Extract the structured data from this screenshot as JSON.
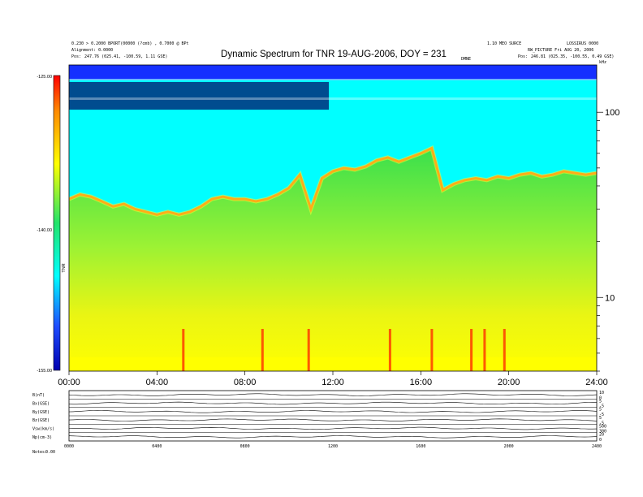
{
  "header": {
    "title": "Dynamic Spectrum for TNR 19-AUG-2006, DOY = 231",
    "left_line1": "0.230 > 0.2000 BPORT(00000 (?cmb) , 0.7000 @ BPt",
    "left_line2": "Alignment: 0.0000",
    "left_pos_label": "Pos:",
    "left_pos_value": "247.76 (025.41, -100.59, 1.11 GSE)",
    "right_line1": "1.10 MEO SURCE",
    "right_line2": "LOSSIRUS 0000",
    "right_line3": "RW_PICTURE  Fri AUG 20, 2006",
    "right_pos_label": "Pos:",
    "right_pos_value": "246.81 (025.35, -100.55, 0.49 GSE)",
    "center_small": "DMNE",
    "corner_small": "kHz"
  },
  "colorbar": {
    "top_label": "-125.00",
    "mid_label": "-140.00",
    "bottom_label": "-155.00",
    "axis_label": "TNR",
    "stops": [
      "#ff0000",
      "#ff8a00",
      "#ffff00",
      "#22e36a",
      "#00ffff",
      "#1e4dff",
      "#0000b0"
    ]
  },
  "chart_data": {
    "type": "heatmap",
    "title": "Dynamic Spectrum for TNR 19-AUG-2006, DOY = 231",
    "xlabel": "",
    "ylabel": "kHz",
    "x_ticks": [
      "00:00",
      "04:00",
      "08:00",
      "12:00",
      "16:00",
      "20:00",
      "24:00"
    ],
    "y_scale": "log",
    "y_range": [
      4,
      180
    ],
    "y_ticks": [
      10,
      100
    ],
    "colorbar_range": [
      -155,
      -125
    ],
    "colorbar_ticks": [
      -125,
      -140,
      -155
    ],
    "plasma_line_khz": {
      "times_h": [
        0,
        0.5,
        1,
        1.5,
        2,
        2.5,
        3,
        3.5,
        4,
        4.5,
        5,
        5.5,
        6,
        6.5,
        7,
        7.5,
        8,
        8.5,
        9,
        9.5,
        10,
        10.5,
        11,
        11.5,
        12,
        12.5,
        13,
        13.5,
        14,
        14.5,
        15,
        15.5,
        16,
        16.5,
        17,
        17.5,
        18,
        18.5,
        19,
        19.5,
        20,
        20.5,
        21,
        21.5,
        22,
        22.5,
        23,
        23.5,
        24
      ],
      "freq_khz": [
        34,
        36,
        35,
        33,
        31,
        32,
        30,
        29,
        28,
        29,
        28,
        29,
        31,
        34,
        35,
        34,
        34,
        33,
        34,
        36,
        39,
        46,
        30,
        44,
        48,
        50,
        49,
        51,
        55,
        57,
        54,
        57,
        60,
        64,
        38,
        41,
        43,
        44,
        43,
        45,
        44,
        46,
        47,
        45,
        46,
        48,
        47,
        46,
        47
      ]
    },
    "bursts_h": [
      5.2,
      8.8,
      10.9,
      14.6,
      16.5,
      18.3,
      18.9,
      19.8
    ]
  },
  "lower_panel": {
    "x_ticks": [
      "0000",
      "0400",
      "0800",
      "1200",
      "1600",
      "2000",
      "2400"
    ],
    "rows": [
      {
        "label": "B(nT)",
        "right_ticks": [
          "10",
          "0"
        ]
      },
      {
        "label": "Bx(GSE)",
        "right_ticks": [
          "5",
          "-5"
        ]
      },
      {
        "label": "By(GSE)",
        "right_ticks": [
          "5",
          "-5"
        ]
      },
      {
        "label": "Bz(GSE)",
        "right_ticks": [
          "5",
          "-5"
        ]
      },
      {
        "label": "Vsw(km/s)",
        "right_ticks": [
          "500",
          "300"
        ]
      },
      {
        "label": "Np(cm-3)",
        "right_ticks": [
          "20",
          "0"
        ]
      }
    ],
    "footer_left": "Notes:",
    "footer_value": "0.00"
  }
}
